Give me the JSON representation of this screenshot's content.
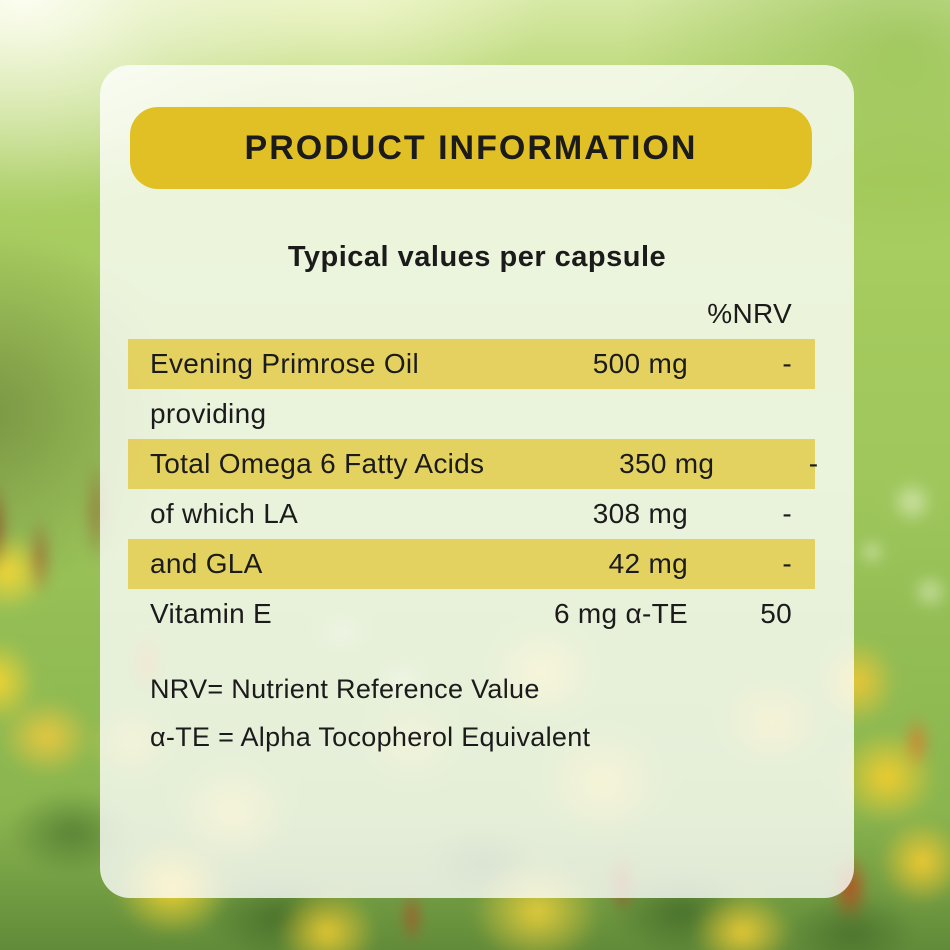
{
  "header": {
    "title": "PRODUCT INFORMATION"
  },
  "panel": {
    "subtitle": "Typical values per capsule",
    "columns": {
      "nrv": "%NRV"
    },
    "rows": [
      {
        "name": "Evening Primrose Oil",
        "amount": "500 mg",
        "nrv": "-"
      },
      {
        "name": "providing",
        "amount": "",
        "nrv": ""
      },
      {
        "name": "Total Omega 6 Fatty Acids",
        "amount": "350 mg",
        "nrv": "-"
      },
      {
        "name": "of which LA",
        "amount": "308 mg",
        "nrv": "-"
      },
      {
        "name": "and GLA",
        "amount": "42 mg",
        "nrv": "-"
      },
      {
        "name": "Vitamin E",
        "amount": "6 mg α-TE",
        "nrv": "50"
      }
    ],
    "footnotes": [
      "NRV= Nutrient Reference Value",
      "α-TE = Alpha Tocopherol Equivalent"
    ]
  },
  "colors": {
    "header_yellow": "#e0c024",
    "row_yellow": "rgba(224,193,38,0.68)",
    "text": "#1b1b1b"
  }
}
